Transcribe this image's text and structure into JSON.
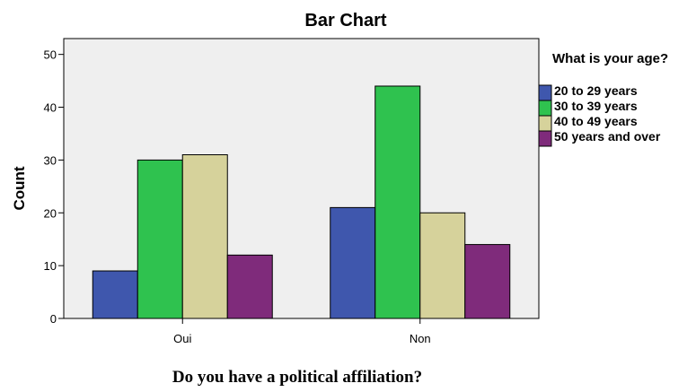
{
  "chart_data": {
    "type": "bar",
    "title": "Bar Chart",
    "xlabel": "Do you have a political affiliation?",
    "ylabel": "Count",
    "categories": [
      "Oui",
      "Non"
    ],
    "ylim": [
      0,
      53
    ],
    "yticks": [
      0,
      10,
      20,
      30,
      40,
      50
    ],
    "grid": false,
    "legend_title": "What is your age?",
    "legend_position": "right",
    "series": [
      {
        "name": "20 to 29 years",
        "values": [
          9,
          21
        ],
        "color": "#3f57ad"
      },
      {
        "name": "30 to 39 years",
        "values": [
          30,
          44
        ],
        "color": "#2fc24f"
      },
      {
        "name": "40 to 49 years",
        "values": [
          31,
          20
        ],
        "color": "#d6d29b"
      },
      {
        "name": "50 years and over",
        "values": [
          12,
          14
        ],
        "color": "#7f2b7b"
      }
    ],
    "plot_background": "#efefef"
  }
}
